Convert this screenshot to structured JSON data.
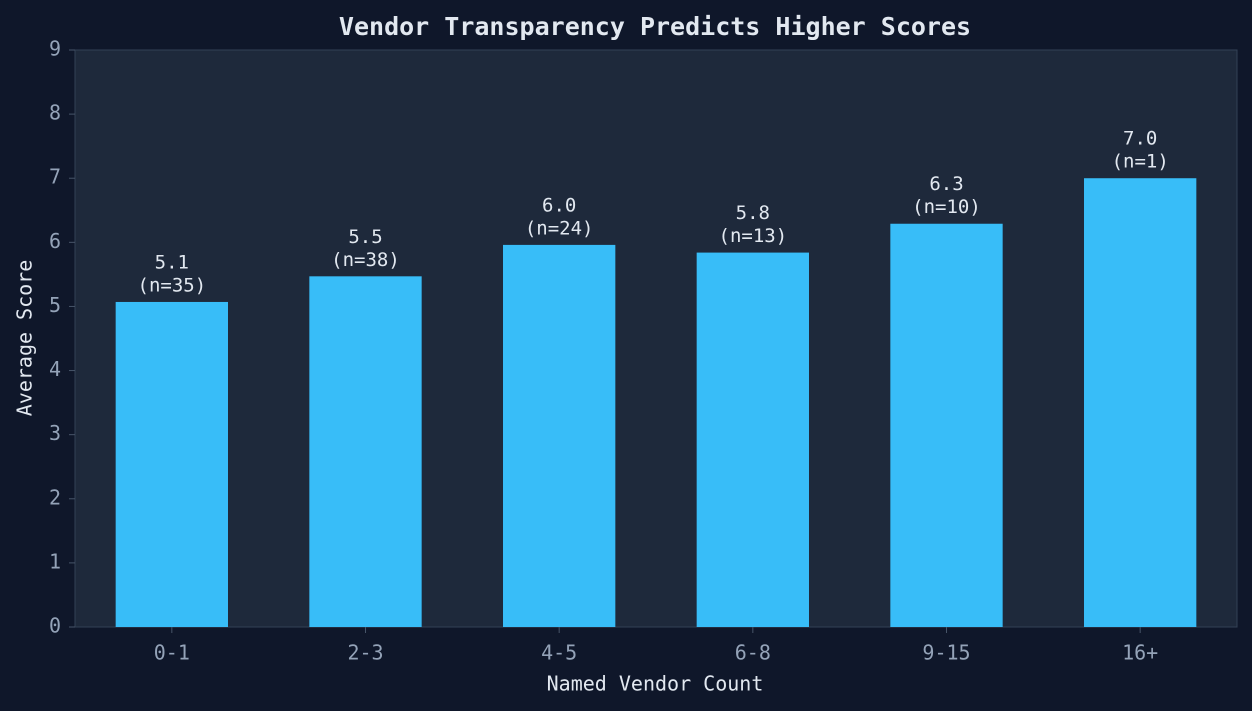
{
  "chart_data": {
    "type": "bar",
    "title": "Vendor Transparency Predicts Higher Scores",
    "x_label": "Named Vendor Count",
    "y_label": "Average Score",
    "categories": [
      "0-1",
      "2-3",
      "4-5",
      "6-8",
      "9-15",
      "16+"
    ],
    "values": [
      5.07,
      5.47,
      5.96,
      5.84,
      6.29,
      7.0
    ],
    "value_labels": [
      "5.1",
      "5.5",
      "6.0",
      "5.8",
      "6.3",
      "7.0"
    ],
    "count_labels": [
      "(n=35)",
      "(n=38)",
      "(n=24)",
      "(n=13)",
      "(n=10)",
      "(n=1)"
    ],
    "color": "#38bdf8",
    "ylim": [
      0,
      9
    ],
    "yticks": [
      0,
      1,
      2,
      3,
      4,
      5,
      6,
      7,
      8,
      9
    ],
    "grid": false
  }
}
